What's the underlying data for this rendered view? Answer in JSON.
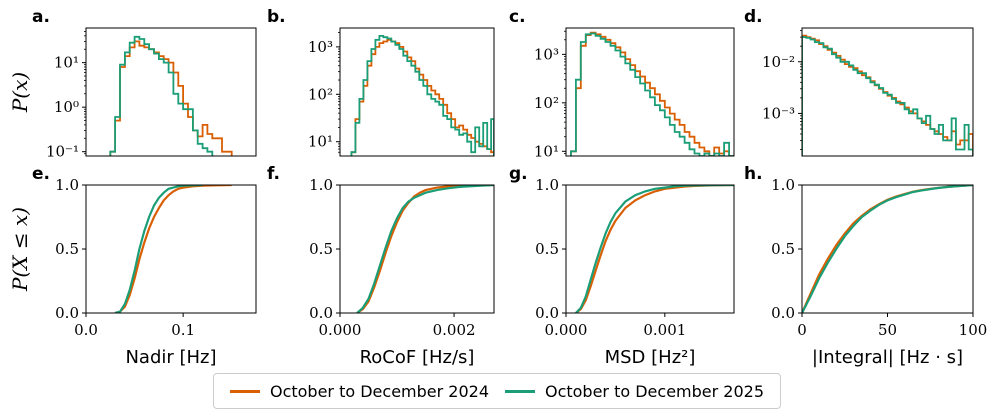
{
  "colors": {
    "series_a": "#d95f02",
    "series_b": "#1b9e77"
  },
  "legend": [
    {
      "label": "October to December 2024",
      "color": "#d95f02"
    },
    {
      "label": "October to December 2025",
      "color": "#1b9e77"
    }
  ],
  "ylabels": {
    "top": "P(x)",
    "bottom": "P(X ≤ x)"
  },
  "chart_data": [
    {
      "type": "histogram",
      "letter": "a.",
      "yscale": "log",
      "xlim": [
        0.0,
        0.175
      ],
      "ylim": [
        0.08,
        60
      ],
      "yticks": [
        {
          "v": 0.1,
          "label": "10⁻¹"
        },
        {
          "v": 1,
          "label": "10⁰"
        },
        {
          "v": 10,
          "label": "10¹"
        }
      ],
      "edges": [
        0.025,
        0.03,
        0.035,
        0.04,
        0.045,
        0.05,
        0.055,
        0.06,
        0.065,
        0.07,
        0.075,
        0.08,
        0.085,
        0.09,
        0.095,
        0.1,
        0.105,
        0.11,
        0.115,
        0.12,
        0.125,
        0.13,
        0.135,
        0.14,
        0.145,
        0.15
      ],
      "series": [
        {
          "name": "October to December 2024",
          "values": [
            0.1,
            0.5,
            8,
            14,
            22,
            30,
            24,
            22,
            20,
            17,
            14,
            12,
            10,
            6,
            3,
            1.2,
            0.6,
            0.3,
            0.22,
            0.4,
            0.25,
            0.2,
            0.2,
            0.1,
            0.1
          ]
        },
        {
          "name": "October to December 2025",
          "values": [
            0.1,
            0.6,
            9,
            17,
            28,
            38,
            34,
            26,
            20,
            16,
            12,
            10,
            6,
            2,
            1.2,
            0.9,
            0.9,
            0.3,
            0.15,
            0.12,
            0.1,
            0,
            0,
            0,
            0
          ]
        }
      ]
    },
    {
      "type": "histogram",
      "letter": "b.",
      "yscale": "log",
      "xlim": [
        0.0,
        0.0027
      ],
      "ylim": [
        5,
        2500
      ],
      "yticks": [
        {
          "v": 10,
          "label": "10¹"
        },
        {
          "v": 100,
          "label": "10²"
        },
        {
          "v": 1000,
          "label": "10³"
        }
      ],
      "edges": [
        0.0002,
        0.00027,
        0.00034,
        0.00041,
        0.00048,
        0.00055,
        0.00062,
        0.00069,
        0.00076,
        0.00083,
        0.0009,
        0.00097,
        0.00104,
        0.00111,
        0.00118,
        0.00125,
        0.00132,
        0.00139,
        0.00146,
        0.00153,
        0.0016,
        0.00167,
        0.00174,
        0.00181,
        0.00188,
        0.00195,
        0.00202,
        0.00209,
        0.00216,
        0.00223,
        0.0023,
        0.00237,
        0.00244,
        0.00251,
        0.00258,
        0.00265,
        0.0027
      ],
      "series": [
        {
          "name": "October to December 2024",
          "values": [
            6,
            30,
            70,
            150,
            400,
            700,
            1000,
            1200,
            1300,
            1400,
            1300,
            1200,
            1000,
            800,
            600,
            500,
            350,
            260,
            200,
            150,
            120,
            100,
            80,
            60,
            40,
            30,
            20,
            22,
            18,
            14,
            12,
            10,
            9,
            8,
            7,
            6
          ]
        },
        {
          "name": "October to December 2025",
          "values": [
            6,
            25,
            80,
            200,
            500,
            900,
            1400,
            1700,
            1600,
            1500,
            1300,
            1100,
            900,
            650,
            500,
            400,
            300,
            200,
            150,
            100,
            80,
            70,
            60,
            35,
            30,
            20,
            18,
            14,
            15,
            10,
            6,
            20,
            8,
            25,
            7,
            30
          ]
        }
      ]
    },
    {
      "type": "histogram",
      "letter": "c.",
      "yscale": "log",
      "xlim": [
        0.0,
        0.0017
      ],
      "ylim": [
        8,
        3500
      ],
      "yticks": [
        {
          "v": 10,
          "label": "10¹"
        },
        {
          "v": 100,
          "label": "10²"
        },
        {
          "v": 1000,
          "label": "10³"
        }
      ],
      "edges": [
        5e-05,
        0.0001,
        0.00015,
        0.0002,
        0.00025,
        0.0003,
        0.00035,
        0.0004,
        0.00045,
        0.0005,
        0.00055,
        0.0006,
        0.00065,
        0.0007,
        0.00075,
        0.0008,
        0.00085,
        0.0009,
        0.00095,
        0.001,
        0.00105,
        0.0011,
        0.00115,
        0.0012,
        0.00125,
        0.0013,
        0.00135,
        0.0014,
        0.00145,
        0.0015,
        0.00155,
        0.0016,
        0.00165,
        0.0017
      ],
      "series": [
        {
          "name": "October to December 2024",
          "values": [
            10,
            200,
            1500,
            2500,
            2800,
            2600,
            2300,
            2000,
            1700,
            1400,
            1100,
            800,
            600,
            450,
            350,
            260,
            200,
            150,
            110,
            80,
            60,
            45,
            35,
            25,
            20,
            15,
            12,
            10,
            8,
            12,
            9,
            10,
            8
          ]
        },
        {
          "name": "October to December 2025",
          "values": [
            10,
            300,
            1800,
            2600,
            2700,
            2400,
            2100,
            1800,
            1500,
            1200,
            900,
            650,
            480,
            340,
            250,
            180,
            130,
            90,
            70,
            50,
            35,
            25,
            20,
            15,
            11,
            9,
            8,
            9,
            8,
            9,
            8,
            15,
            8
          ]
        }
      ]
    },
    {
      "type": "histogram",
      "letter": "d.",
      "yscale": "log",
      "xlim": [
        0,
        100
      ],
      "ylim": [
        0.00015,
        0.045
      ],
      "yticks": [
        {
          "v": 0.001,
          "label": "10⁻³"
        },
        {
          "v": 0.01,
          "label": "10⁻²"
        }
      ],
      "edges": [
        0,
        2.5,
        5,
        7.5,
        10,
        12.5,
        15,
        17.5,
        20,
        22.5,
        25,
        27.5,
        30,
        32.5,
        35,
        37.5,
        40,
        42.5,
        45,
        47.5,
        50,
        52.5,
        55,
        57.5,
        60,
        62.5,
        65,
        67.5,
        70,
        72.5,
        75,
        77.5,
        80,
        82.5,
        85,
        87.5,
        90,
        92.5,
        95,
        97.5,
        100
      ],
      "series": [
        {
          "name": "October to December 2024",
          "values": [
            0.032,
            0.03,
            0.028,
            0.026,
            0.022,
            0.02,
            0.017,
            0.015,
            0.013,
            0.011,
            0.009,
            0.008,
            0.0075,
            0.0065,
            0.0055,
            0.005,
            0.0042,
            0.0035,
            0.003,
            0.0026,
            0.0022,
            0.002,
            0.0017,
            0.0015,
            0.0013,
            0.0011,
            0.001,
            0.0008,
            0.0007,
            0.0006,
            0.0005,
            0.00045,
            0.0004,
            0.00035,
            0.0003,
            0.00045,
            0.00025,
            0.0003,
            0.0003,
            0.0004
          ]
        },
        {
          "name": "October to December 2025",
          "values": [
            0.03,
            0.029,
            0.027,
            0.024,
            0.023,
            0.019,
            0.018,
            0.014,
            0.012,
            0.01,
            0.01,
            0.0085,
            0.007,
            0.006,
            0.006,
            0.0048,
            0.004,
            0.0036,
            0.0031,
            0.0025,
            0.0023,
            0.0019,
            0.0016,
            0.0016,
            0.0012,
            0.001,
            0.0012,
            0.0008,
            0.00065,
            0.0009,
            0.0005,
            0.0004,
            0.0006,
            0.0003,
            0.0003,
            0.0008,
            0.0002,
            0.0002,
            0.0006,
            0.0002
          ]
        }
      ]
    },
    {
      "type": "line",
      "letter": "e.",
      "xlim": [
        0.0,
        0.175
      ],
      "ylim": [
        0,
        1
      ],
      "xticks": [
        {
          "v": 0.0,
          "label": "0.0"
        },
        {
          "v": 0.1,
          "label": "0.1"
        }
      ],
      "yticks": [
        {
          "v": 0,
          "label": "0.0"
        },
        {
          "v": 0.5,
          "label": "0.5"
        },
        {
          "v": 1,
          "label": "1.0"
        }
      ],
      "xlabel": "Nadir [Hz]",
      "series": [
        {
          "name": "October to December 2024",
          "x": [
            0.03,
            0.035,
            0.04,
            0.045,
            0.05,
            0.055,
            0.06,
            0.065,
            0.07,
            0.075,
            0.08,
            0.085,
            0.09,
            0.095,
            0.1,
            0.11,
            0.12,
            0.135,
            0.15
          ],
          "y": [
            0,
            0.01,
            0.05,
            0.14,
            0.27,
            0.42,
            0.55,
            0.66,
            0.75,
            0.82,
            0.88,
            0.92,
            0.95,
            0.97,
            0.98,
            0.99,
            0.995,
            0.998,
            1.0
          ]
        },
        {
          "name": "October to December 2025",
          "x": [
            0.03,
            0.035,
            0.04,
            0.045,
            0.05,
            0.055,
            0.06,
            0.065,
            0.07,
            0.075,
            0.08,
            0.085,
            0.09,
            0.095,
            0.1,
            0.11,
            0.12
          ],
          "y": [
            0,
            0.01,
            0.07,
            0.18,
            0.33,
            0.5,
            0.64,
            0.75,
            0.84,
            0.9,
            0.94,
            0.97,
            0.98,
            0.99,
            0.995,
            0.998,
            1.0
          ]
        }
      ]
    },
    {
      "type": "line",
      "letter": "f.",
      "xlim": [
        0.0,
        0.0027
      ],
      "ylim": [
        0,
        1
      ],
      "xticks": [
        {
          "v": 0.0,
          "label": "0.000"
        },
        {
          "v": 0.002,
          "label": "0.002"
        }
      ],
      "yticks": [
        {
          "v": 0,
          "label": "0.0"
        },
        {
          "v": 0.5,
          "label": "0.5"
        },
        {
          "v": 1,
          "label": "1.0"
        }
      ],
      "xlabel": "RoCoF [Hz/s]",
      "series": [
        {
          "name": "October to December 2024",
          "x": [
            0.0003,
            0.0004,
            0.0005,
            0.0006,
            0.0007,
            0.0008,
            0.0009,
            0.001,
            0.0011,
            0.0012,
            0.0013,
            0.0014,
            0.0015,
            0.0017,
            0.0019,
            0.0021,
            0.0024,
            0.0027
          ],
          "y": [
            0,
            0.03,
            0.09,
            0.2,
            0.33,
            0.47,
            0.6,
            0.71,
            0.8,
            0.86,
            0.91,
            0.94,
            0.96,
            0.98,
            0.99,
            0.995,
            0.998,
            1.0
          ]
        },
        {
          "name": "October to December 2025",
          "x": [
            0.0003,
            0.0004,
            0.0005,
            0.0006,
            0.0007,
            0.0008,
            0.0009,
            0.001,
            0.0011,
            0.0012,
            0.0013,
            0.0014,
            0.0015,
            0.0017,
            0.0019,
            0.0021,
            0.0024,
            0.0027
          ],
          "y": [
            0,
            0.04,
            0.11,
            0.23,
            0.37,
            0.51,
            0.64,
            0.74,
            0.82,
            0.87,
            0.9,
            0.92,
            0.94,
            0.96,
            0.975,
            0.985,
            0.993,
            1.0
          ]
        }
      ]
    },
    {
      "type": "line",
      "letter": "g.",
      "xlim": [
        0.0,
        0.0017
      ],
      "ylim": [
        0,
        1
      ],
      "xticks": [
        {
          "v": 0.0,
          "label": "0.000"
        },
        {
          "v": 0.001,
          "label": "0.001"
        }
      ],
      "yticks": [
        {
          "v": 0,
          "label": "0.0"
        },
        {
          "v": 0.5,
          "label": "0.5"
        },
        {
          "v": 1,
          "label": "1.0"
        }
      ],
      "xlabel": "MSD [Hz²]",
      "series": [
        {
          "name": "October to December 2024",
          "x": [
            0.0001,
            0.00015,
            0.0002,
            0.00025,
            0.0003,
            0.00035,
            0.0004,
            0.00045,
            0.0005,
            0.0006,
            0.0007,
            0.0008,
            0.0009,
            0.001,
            0.0011,
            0.0012,
            0.0013,
            0.0015,
            0.0017
          ],
          "y": [
            0,
            0.03,
            0.1,
            0.21,
            0.33,
            0.45,
            0.56,
            0.65,
            0.72,
            0.82,
            0.88,
            0.92,
            0.95,
            0.97,
            0.98,
            0.988,
            0.993,
            0.998,
            1.0
          ]
        },
        {
          "name": "October to December 2025",
          "x": [
            0.0001,
            0.00015,
            0.0002,
            0.00025,
            0.0003,
            0.00035,
            0.0004,
            0.00045,
            0.0005,
            0.0006,
            0.0007,
            0.0008,
            0.0009,
            0.001,
            0.0011,
            0.0012,
            0.0013,
            0.0015,
            0.0017
          ],
          "y": [
            0,
            0.04,
            0.13,
            0.26,
            0.39,
            0.51,
            0.62,
            0.71,
            0.78,
            0.87,
            0.92,
            0.95,
            0.97,
            0.98,
            0.99,
            0.995,
            0.997,
            0.999,
            1.0
          ]
        }
      ]
    },
    {
      "type": "line",
      "letter": "h.",
      "xlim": [
        0,
        100
      ],
      "ylim": [
        0,
        1
      ],
      "xticks": [
        {
          "v": 0,
          "label": "0"
        },
        {
          "v": 50,
          "label": "50"
        },
        {
          "v": 100,
          "label": "100"
        }
      ],
      "yticks": [
        {
          "v": 0,
          "label": "0.0"
        },
        {
          "v": 0.5,
          "label": "0.5"
        },
        {
          "v": 1,
          "label": "1.0"
        }
      ],
      "xlabel": "|Integral| [Hz · s]",
      "series": [
        {
          "name": "October to December 2024",
          "x": [
            0,
            5,
            10,
            15,
            20,
            25,
            30,
            35,
            40,
            45,
            50,
            55,
            60,
            65,
            70,
            75,
            80,
            85,
            90,
            95,
            100
          ],
          "y": [
            0,
            0.15,
            0.3,
            0.42,
            0.53,
            0.62,
            0.7,
            0.76,
            0.81,
            0.85,
            0.885,
            0.91,
            0.93,
            0.948,
            0.96,
            0.97,
            0.978,
            0.985,
            0.99,
            0.995,
            1.0
          ]
        },
        {
          "name": "October to December 2025",
          "x": [
            0,
            5,
            10,
            15,
            20,
            25,
            30,
            35,
            40,
            45,
            50,
            55,
            60,
            65,
            70,
            75,
            80,
            85,
            90,
            95,
            100
          ],
          "y": [
            0,
            0.13,
            0.27,
            0.39,
            0.5,
            0.6,
            0.68,
            0.75,
            0.8,
            0.845,
            0.88,
            0.905,
            0.925,
            0.945,
            0.958,
            0.968,
            0.977,
            0.984,
            0.99,
            0.995,
            1.0
          ]
        }
      ]
    }
  ]
}
